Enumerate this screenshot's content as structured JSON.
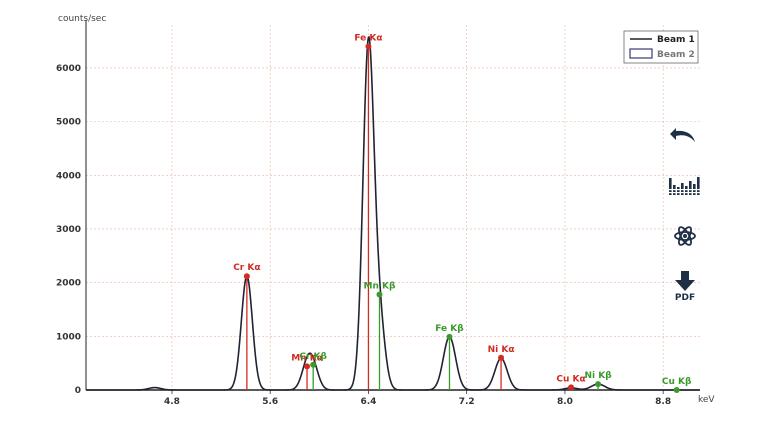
{
  "chart_data": {
    "type": "line",
    "ylabel": "counts/sec",
    "xlabel": "keV",
    "xlim": [
      4.1,
      9.1
    ],
    "ylim": [
      0,
      6800
    ],
    "x_ticks": [
      4.8,
      5.6,
      6.4,
      7.2,
      8.0,
      8.8
    ],
    "y_ticks": [
      0,
      1000,
      2000,
      3000,
      4000,
      5000,
      6000
    ],
    "grid": true,
    "legend_position": "top-right",
    "series": [
      {
        "name": "Beam 1",
        "color": "#222233",
        "style": "line",
        "peaks": [
          {
            "x": 4.66,
            "y": 45,
            "w": 0.05
          },
          {
            "x": 5.41,
            "y": 2120,
            "w": 0.045
          },
          {
            "x": 5.9,
            "y": 420,
            "w": 0.045
          },
          {
            "x": 5.95,
            "y": 380,
            "w": 0.045
          },
          {
            "x": 6.4,
            "y": 6400,
            "w": 0.045
          },
          {
            "x": 6.49,
            "y": 1250,
            "w": 0.045
          },
          {
            "x": 7.06,
            "y": 990,
            "w": 0.05
          },
          {
            "x": 7.48,
            "y": 590,
            "w": 0.05
          },
          {
            "x": 8.05,
            "y": 40,
            "w": 0.05
          },
          {
            "x": 8.27,
            "y": 110,
            "w": 0.055
          }
        ]
      },
      {
        "name": "Beam 2",
        "color": "#3a3a7a",
        "style": "box"
      }
    ],
    "markers": [
      {
        "label": "Cr Kα",
        "x": 5.41,
        "y": 2120,
        "color": "#d22b20"
      },
      {
        "label": "Mn Kα",
        "x": 5.9,
        "y": 440,
        "color": "#d22b20"
      },
      {
        "label": "Cr Kβ",
        "x": 5.95,
        "y": 470,
        "color": "#3a9a2a"
      },
      {
        "label": "Fe Kα",
        "x": 6.4,
        "y": 6400,
        "color": "#d22b20"
      },
      {
        "label": "Mn Kβ",
        "x": 6.49,
        "y": 1780,
        "color": "#3a9a2a"
      },
      {
        "label": "Fe Kβ",
        "x": 7.06,
        "y": 990,
        "color": "#3a9a2a"
      },
      {
        "label": "Ni Kα",
        "x": 7.48,
        "y": 600,
        "color": "#d22b20"
      },
      {
        "label": "Cu Kα",
        "x": 8.05,
        "y": 50,
        "color": "#d22b20"
      },
      {
        "label": "Ni Kβ",
        "x": 8.27,
        "y": 110,
        "color": "#3a9a2a"
      },
      {
        "label": "Cu Kβ",
        "x": 8.91,
        "y": 0,
        "color": "#3a9a2a"
      }
    ]
  },
  "toolbar": {
    "undo_icon": "undo-arrow-icon",
    "spectrum_icon": "histogram-icon",
    "atom_icon": "atom-icon",
    "pdf_icon": "download-arrow-icon",
    "pdf_label": "PDF",
    "icon_color": "#1f2f45"
  }
}
